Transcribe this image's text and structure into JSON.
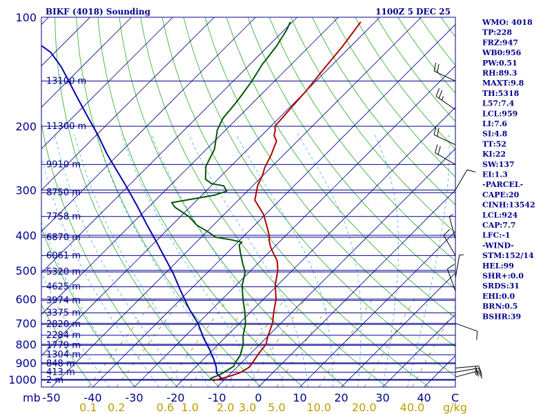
{
  "chart_data": {
    "type": "skew-t",
    "title_left": "BIKF (4018) Sounding",
    "title_right": "1100Z  5 DEC 25",
    "pressure_axis_label": "mb",
    "pressure_ticks": [
      "100",
      "200",
      "300",
      "400",
      "500",
      "600",
      "700",
      "800",
      "900",
      "1000"
    ],
    "temperature_ticks": [
      "-50",
      "-40",
      "-30",
      "-20",
      "-10",
      "0",
      "10",
      "20",
      "30",
      "40"
    ],
    "temperature_unit": "C",
    "mixing_ratio_labels": [
      "0.1",
      "0.2",
      "0.6",
      "1.0",
      "2.0",
      "3.0",
      "5.0",
      "10.0",
      "20.0",
      "40.0"
    ],
    "mixing_ratio_unit": "g/kg",
    "height_labels": [
      {
        "label": "13100 m",
        "p": 150
      },
      {
        "label": "11300 m",
        "p": 200
      },
      {
        "label": "9910 m",
        "p": 255
      },
      {
        "label": "8750 m",
        "p": 305
      },
      {
        "label": "7758 m",
        "p": 355
      },
      {
        "label": "6870 m",
        "p": 405
      },
      {
        "label": "6061 m",
        "p": 455
      },
      {
        "label": "5320 m",
        "p": 505
      },
      {
        "label": "4625 m",
        "p": 555
      },
      {
        "label": "3974 m",
        "p": 605
      },
      {
        "label": "3375 m",
        "p": 655
      },
      {
        "label": "2820 m",
        "p": 705
      },
      {
        "label": "2284 m",
        "p": 755
      },
      {
        "label": "1779 m",
        "p": 805
      },
      {
        "label": "1304 m",
        "p": 855
      },
      {
        "label": "848 m",
        "p": 905
      },
      {
        "label": "413 m",
        "p": 955
      },
      {
        "label": "2 m",
        "p": 1005
      }
    ],
    "temperature_profile": [
      [
        -12.5,
        1008
      ],
      [
        -10.0,
        985
      ],
      [
        -8.0,
        960
      ],
      [
        -7.0,
        925
      ],
      [
        -7.3,
        900
      ],
      [
        -8.0,
        850
      ],
      [
        -8.5,
        800
      ],
      [
        -10.0,
        760
      ],
      [
        -12.0,
        700
      ],
      [
        -14.5,
        650
      ],
      [
        -17.0,
        600
      ],
      [
        -20.5,
        550
      ],
      [
        -23.5,
        500
      ],
      [
        -26.0,
        470
      ],
      [
        -28.5,
        450
      ],
      [
        -31.0,
        430
      ],
      [
        -33.0,
        412
      ],
      [
        -33.5,
        405
      ],
      [
        -36.5,
        380
      ],
      [
        -40.5,
        350
      ],
      [
        -46.0,
        320
      ],
      [
        -48.0,
        300
      ],
      [
        -49.0,
        290
      ],
      [
        -50.0,
        275
      ],
      [
        -51.5,
        260
      ],
      [
        -53.0,
        240
      ],
      [
        -54.5,
        225
      ],
      [
        -55.0,
        220
      ],
      [
        -57.0,
        212
      ],
      [
        -58.0,
        205
      ],
      [
        -59.0,
        200
      ],
      [
        -59.5,
        180
      ],
      [
        -60.0,
        160
      ],
      [
        -61.0,
        140
      ],
      [
        -62.0,
        120
      ],
      [
        -63.5,
        103
      ]
    ],
    "dewpoint_profile": [
      [
        -13.5,
        1008
      ],
      [
        -13.5,
        990
      ],
      [
        -12.5,
        975
      ],
      [
        -12.0,
        960
      ],
      [
        -11.0,
        920
      ],
      [
        -11.5,
        900
      ],
      [
        -12.0,
        860
      ],
      [
        -14.0,
        800
      ],
      [
        -16.0,
        760
      ],
      [
        -18.5,
        700
      ],
      [
        -21.5,
        650
      ],
      [
        -25.0,
        600
      ],
      [
        -28.5,
        550
      ],
      [
        -31.0,
        505
      ],
      [
        -33.5,
        480
      ],
      [
        -37.0,
        445
      ],
      [
        -39.0,
        425
      ],
      [
        -39.0,
        418
      ],
      [
        -42.0,
        412
      ],
      [
        -46.5,
        405
      ],
      [
        -50.0,
        390
      ],
      [
        -54.0,
        375
      ],
      [
        -58.0,
        355
      ],
      [
        -63.5,
        335
      ],
      [
        -65.5,
        325
      ],
      [
        -57.0,
        310
      ],
      [
        -55.0,
        302
      ],
      [
        -57.0,
        292
      ],
      [
        -60.5,
        288
      ],
      [
        -63.0,
        280
      ],
      [
        -66.0,
        258
      ],
      [
        -67.0,
        245
      ],
      [
        -68.0,
        232
      ],
      [
        -70.0,
        218
      ],
      [
        -72.0,
        205
      ],
      [
        -73.5,
        190
      ],
      [
        -74.0,
        175
      ],
      [
        -74.5,
        165
      ],
      [
        -75.5,
        150
      ],
      [
        -77.0,
        135
      ],
      [
        -78.0,
        120
      ],
      [
        -79.5,
        108
      ],
      [
        -80.5,
        103
      ]
    ],
    "parcel_profile": [
      [
        -10.0,
        1008
      ],
      [
        -13.5,
        960
      ],
      [
        -15.0,
        925
      ],
      [
        -17.5,
        880
      ],
      [
        -21.0,
        825
      ],
      [
        -25.0,
        770
      ],
      [
        -30.0,
        700
      ],
      [
        -35.5,
        640
      ],
      [
        -41.5,
        575
      ],
      [
        -48.0,
        510
      ],
      [
        -54.0,
        460
      ],
      [
        -60.0,
        415
      ],
      [
        -66.0,
        375
      ],
      [
        -72.5,
        335
      ],
      [
        -80.0,
        295
      ],
      [
        -86.5,
        265
      ],
      [
        -93.0,
        238
      ],
      [
        -99.5,
        212
      ],
      [
        -106.0,
        190
      ],
      [
        -112.5,
        170
      ],
      [
        -119.0,
        152
      ],
      [
        -125.0,
        137
      ],
      [
        -131.0,
        125
      ],
      [
        -137.0,
        117
      ]
    ],
    "wind_barbs": [
      {
        "p": 985,
        "dir": 75,
        "speed_kt": 15
      },
      {
        "p": 955,
        "dir": 80,
        "speed_kt": 20
      },
      {
        "p": 930,
        "dir": 85,
        "speed_kt": 20
      },
      {
        "p": 700,
        "dir": 110,
        "speed_kt": 10
      },
      {
        "p": 570,
        "dir": 340,
        "speed_kt": 10
      },
      {
        "p": 525,
        "dir": 10,
        "speed_kt": 5
      },
      {
        "p": 455,
        "dir": 330,
        "speed_kt": 10
      },
      {
        "p": 410,
        "dir": 345,
        "speed_kt": 5
      },
      {
        "p": 300,
        "dir": 30,
        "speed_kt": 10
      },
      {
        "p": 255,
        "dir": 300,
        "speed_kt": 20
      },
      {
        "p": 225,
        "dir": 295,
        "speed_kt": 20
      },
      {
        "p": 180,
        "dir": 305,
        "speed_kt": 25
      },
      {
        "p": 150,
        "dir": 295,
        "speed_kt": 20
      }
    ],
    "colors": {
      "temperature": "#b00000",
      "dewpoint": "#005500",
      "parcel": "#0000b0",
      "isobar": "#00008b",
      "isotherm": "#00008b",
      "dry_adiabat": "#22aa22",
      "moist_adiabat": "#44aadd",
      "mixing_ratio": "#998800",
      "text": "#00008b",
      "mixing_label": "#b8a000"
    }
  },
  "indices": [
    "WMO: 4018",
    "TP:228",
    "FRZ:947",
    "WB0:956",
    "PW:0.51",
    "RH:89.3",
    "MAXT:9.8",
    "TH:5318",
    "L57:7.4",
    "LCL:959",
    "LI:7.6",
    "SI:4.8",
    "TT:52",
    "KI:22",
    "SW:137",
    "EI:1.3",
    "-PARCEL-",
    "CAPE:20",
    "CINH:13542",
    "LCL:924",
    "CAP:7.7",
    "LFC:-1",
    "-WIND-",
    "STM:152/14",
    "HEL:99",
    "SHR+:0.0",
    "SRDS:31",
    "EHI:0.0",
    "BRN:0.5",
    "BSHR:39"
  ]
}
